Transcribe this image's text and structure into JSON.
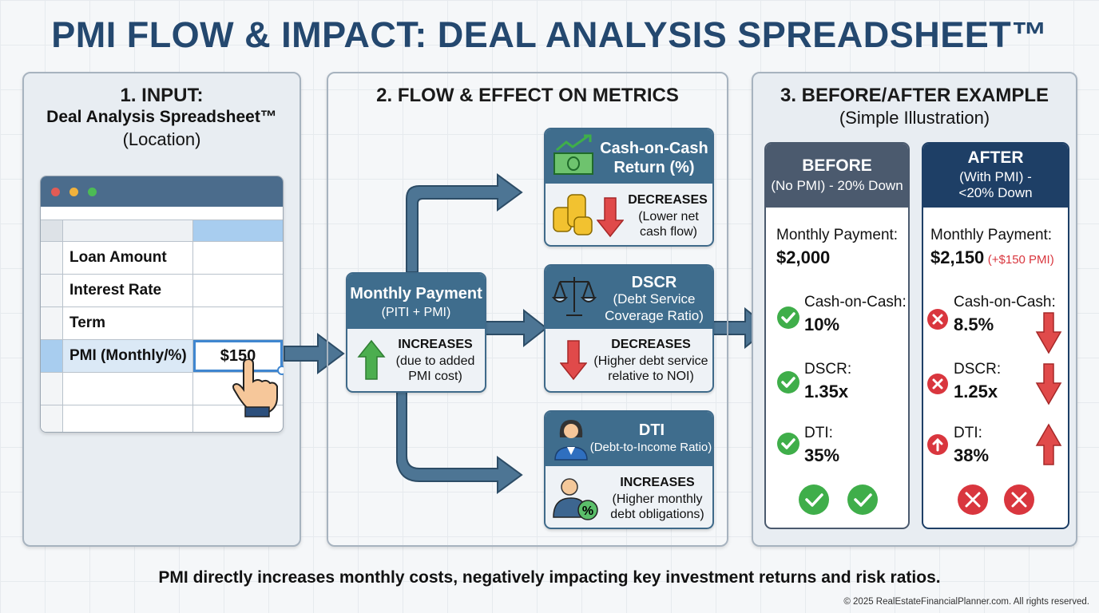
{
  "title": "PMI FLOW & IMPACT: DEAL ANALYSIS SPREADSHEET™",
  "panel1": {
    "heading": "1. INPUT:",
    "subheading": "Deal Analysis Spreadsheet™",
    "note": "(Location)",
    "rows": [
      "Loan Amount",
      "Interest Rate",
      "Term",
      "PMI (Monthly/%)"
    ],
    "pmi_value": "$150"
  },
  "panel2": {
    "heading": "2. FLOW & EFFECT ON METRICS",
    "payment": {
      "title": "Monthly Payment",
      "sub": "(PITI + PMI)",
      "effect": "INCREASES",
      "reason": "(due to added PMI cost)"
    },
    "coc": {
      "title": "Cash-on-Cash Return (%)",
      "effect": "DECREASES",
      "reason": "(Lower net cash flow)"
    },
    "dscr": {
      "title": "DSCR",
      "sub": "(Debt Service Coverage Ratio)",
      "effect": "DECREASES",
      "reason": "(Higher debt service relative to NOI)"
    },
    "dti": {
      "title": "DTI",
      "sub": "(Debt-to-Income Ratio)",
      "effect": "INCREASES",
      "reason": "(Higher monthly debt obligations)"
    }
  },
  "panel3": {
    "heading": "3. BEFORE/AFTER EXAMPLE",
    "sub": "(Simple Illustration)",
    "before": {
      "title": "BEFORE",
      "sub": "(No PMI) - 20% Down",
      "payment_label": "Monthly Payment:",
      "payment": "$2,000",
      "coc_label": "Cash-on-Cash:",
      "coc": "10%",
      "dscr_label": "DSCR:",
      "dscr": "1.35x",
      "dti_label": "DTI:",
      "dti": "35%"
    },
    "after": {
      "title": "AFTER",
      "sub": "(With PMI) - <20% Down",
      "payment_label": "Monthly Payment:",
      "payment": "$2,150",
      "pmi_note": "(+$150 PMI)",
      "coc_label": "Cash-on-Cash:",
      "coc": "8.5%",
      "dscr_label": "DSCR:",
      "dscr": "1.25x",
      "dti_label": "DTI:",
      "dti": "38%"
    }
  },
  "footer": "PMI directly increases monthly costs, negatively impacting key investment returns and risk ratios.",
  "copyright": "© 2025 RealEstateFinancialPlanner.com. All rights reserved.",
  "colors": {
    "title": "#24486f",
    "header": "#3f6d8d",
    "red": "#d9363e",
    "green": "#3fae4a",
    "before": "#4b5a6e",
    "after": "#1e3f66"
  }
}
